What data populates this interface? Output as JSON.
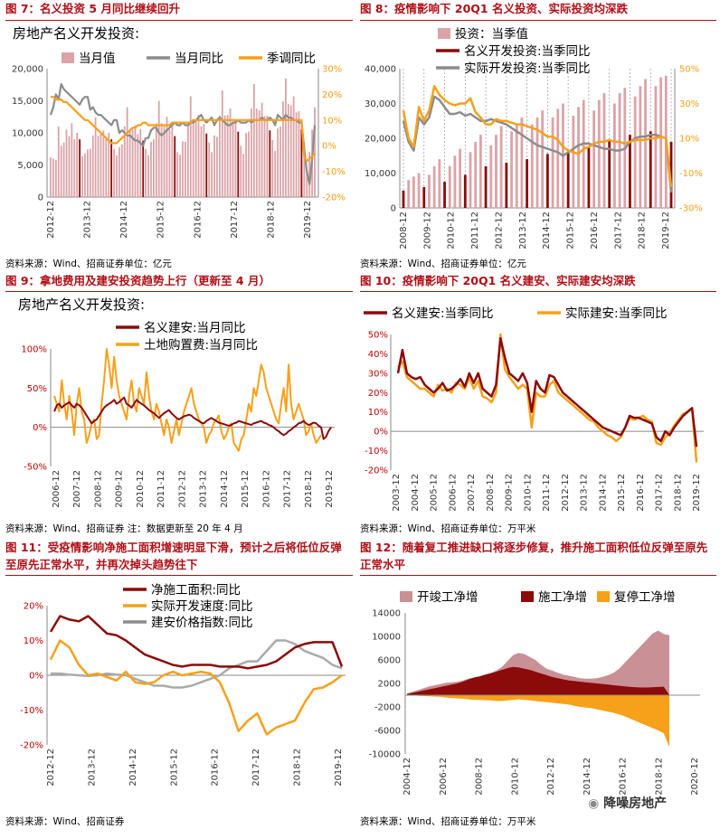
{
  "panels": {
    "p7": {
      "fig_title": "图 7：名义投资 5 月同比继续回升",
      "source": "资料来源：Wind、招商证券单位：亿元"
    },
    "p8": {
      "fig_title": "图 8：疫情影响下 20Q1 名义投资、实际投资均深跌",
      "source": "资料来源：Wind、招商证券单位：亿元"
    },
    "p9": {
      "fig_title": "图 9：拿地费用及建安投资趋势上行（更新至 4 月）",
      "source": "资料来源：Wind、招商证券 注：数据更新至 20 年 4 月"
    },
    "p10": {
      "fig_title": "图 10：疫情影响下 20Q1 名义建安、实际建安均深跌",
      "source": "资料来源：Wind、招商证券单位：万平米"
    },
    "p11": {
      "fig_title": "图 11：受疫情影响净施工面积增速明显下滑，预计之后将低位反弹至原先正常水平，并再次掉头趋势往下",
      "source": "资料来源：Wind、招商证券"
    },
    "p12": {
      "fig_title": "图 12：随着复工推进缺口将逐步修复，推升施工面积低位反弹至原先正常水平",
      "source": "资料来源：Wind、招商证券单位：万平米"
    }
  },
  "watermark": "降噪房地产",
  "chart_data": [
    {
      "id": "c7",
      "type": "bar+line",
      "title": "房地产名义开发投资:",
      "legend": [
        "当月值",
        "当月同比",
        "季调同比"
      ],
      "x_ticks": [
        "2012-12",
        "2013-12",
        "2014-12",
        "2015-12",
        "2016-12",
        "2017-12",
        "2018-12",
        "2019-12"
      ],
      "ylim_left": [
        0,
        20000
      ],
      "yticks_left": [
        "0",
        "5,000",
        "10,000",
        "15,000",
        "20,000"
      ],
      "ylim_right": [
        -20,
        30
      ],
      "yticks_right": [
        "-20%",
        "-10%",
        "0%",
        "10%",
        "20%",
        "30%"
      ],
      "bars_monthly": [
        6200,
        6000,
        5800,
        11000,
        8000,
        8500,
        10500,
        9500,
        11500,
        9000,
        10000,
        9000,
        6400,
        6800,
        7400,
        7500,
        9600,
        12400,
        9600,
        9800,
        10400,
        9000,
        10000,
        9000,
        7500,
        6500,
        7800,
        8200,
        11000,
        14000,
        10500,
        10500,
        11200,
        9800,
        10600,
        8800,
        7500,
        6500,
        8600,
        9000,
        11500,
        15000,
        11500,
        11000,
        12500,
        10500,
        11200,
        9500,
        7000,
        6600,
        8700,
        8600,
        11700,
        15700,
        12000,
        11900,
        12800,
        11000,
        11400,
        9900,
        8500,
        7000,
        9600,
        9400,
        12700,
        16600,
        12700,
        12800,
        13800,
        11800,
        12000,
        10200,
        8000,
        6700,
        10000,
        10200,
        13800,
        17600,
        13800,
        13500,
        14700,
        12600,
        12700,
        10400,
        8900,
        7200,
        10700,
        11000,
        14900,
        18500,
        14500,
        14300,
        15700,
        13200,
        13400,
        10600,
        8600,
        4000,
        7000,
        10500,
        14000
      ],
      "yoy_monthly": [
        12,
        15,
        20,
        18,
        24,
        22,
        21,
        20,
        19,
        18,
        17,
        16,
        18,
        19,
        19,
        14,
        15,
        13,
        12,
        12,
        11,
        10,
        9,
        8,
        10,
        10,
        5,
        6,
        5,
        4,
        4,
        3,
        2,
        2,
        1,
        0,
        3,
        3,
        6,
        7,
        7,
        5,
        4,
        5,
        6,
        7,
        8,
        9,
        8,
        8,
        9,
        8,
        8,
        9,
        9,
        10,
        11,
        12,
        10,
        9,
        10,
        11,
        8,
        10,
        11,
        10,
        9,
        8,
        8,
        9,
        9,
        10,
        9,
        9,
        9,
        10,
        9,
        10,
        10,
        10,
        11,
        10,
        10,
        11,
        10,
        8,
        12,
        11,
        10,
        12,
        11,
        11,
        10,
        10,
        9,
        9,
        -1,
        -10,
        -15,
        -5,
        8
      ],
      "sa_yoy_monthly": [
        19,
        19,
        18,
        18,
        18,
        17,
        17,
        16,
        15,
        14,
        13,
        12,
        11,
        10,
        10,
        9,
        8,
        7,
        6,
        5,
        4,
        3,
        2,
        1,
        1,
        1,
        2,
        3,
        4,
        5,
        6,
        7,
        7,
        8,
        8,
        9,
        9,
        8,
        8,
        8,
        8,
        8,
        8,
        8,
        8,
        8,
        9,
        9,
        9,
        9,
        9,
        9,
        9,
        9,
        10,
        10,
        10,
        10,
        10,
        10,
        10,
        10,
        10,
        10,
        10,
        10,
        10,
        10,
        10,
        10,
        10,
        10,
        10,
        10,
        10,
        10,
        10,
        10,
        10,
        10,
        10,
        10,
        10,
        10,
        10,
        10,
        10,
        10,
        10,
        10,
        10,
        10,
        10,
        10,
        10,
        10,
        -4,
        -6,
        -5,
        -4,
        -3
      ]
    },
    {
      "id": "c8",
      "type": "bar+line",
      "legend": [
        "投资：当季值",
        "名义开发投资:当季同比",
        "实际开发投资:当季同比"
      ],
      "x_ticks": [
        "2008-12",
        "2009-12",
        "2010-12",
        "2011-12",
        "2012-12",
        "2013-12",
        "2014-12",
        "2015-12",
        "2016-12",
        "2017-12",
        "2018-12",
        "2019-12"
      ],
      "ylim_left": [
        0,
        40000
      ],
      "yticks_left": [
        "0",
        "10,000",
        "20,000",
        "30,000",
        "40,000"
      ],
      "ylim_right": [
        -30,
        50
      ],
      "yticks_right": [
        "-30%",
        "-10%",
        "10%",
        "30%",
        "50%"
      ],
      "bars_quarterly": [
        5000,
        8000,
        9000,
        10000,
        6000,
        9500,
        12000,
        14000,
        7500,
        12000,
        15000,
        17000,
        9500,
        16000,
        19000,
        21000,
        12000,
        18000,
        21000,
        23500,
        13000,
        22000,
        24000,
        26000,
        14000,
        24000,
        26000,
        28000,
        15500,
        26000,
        28500,
        30000,
        16000,
        26500,
        29000,
        31000,
        17500,
        28000,
        31000,
        33000,
        19500,
        30000,
        33000,
        34500,
        21000,
        32000,
        35000,
        37000,
        22000,
        35000,
        37500,
        38000,
        19000
      ],
      "nominal_yoy_q": [
        26,
        10,
        5,
        28,
        20,
        26,
        40,
        35,
        32,
        30,
        29,
        30,
        30,
        33,
        25,
        22,
        18,
        18,
        21,
        20,
        20,
        19,
        18,
        18,
        17,
        16,
        15,
        13,
        11,
        11,
        9,
        5,
        3,
        2,
        1,
        4,
        5,
        7,
        8,
        8,
        9,
        8,
        8,
        7,
        8,
        9,
        9,
        9,
        10,
        10,
        11,
        10,
        -18
      ],
      "real_yoy_q": [
        20,
        8,
        3,
        22,
        18,
        22,
        34,
        32,
        28,
        24,
        24,
        25,
        23,
        24,
        22,
        20,
        20,
        21,
        20,
        19,
        18,
        16,
        14,
        12,
        10,
        8,
        6,
        5,
        4,
        3,
        2,
        0,
        2,
        4,
        6,
        7,
        7,
        6,
        5,
        4,
        4,
        3,
        3,
        4,
        8,
        10,
        11,
        11,
        12,
        12,
        11,
        10,
        -21
      ]
    },
    {
      "id": "c9",
      "type": "line",
      "title": "房地产名义开发投资:",
      "legend": [
        "名义建安:当月同比",
        "土地购置费:当月同比"
      ],
      "x_ticks": [
        "2006-12",
        "2007-12",
        "2008-12",
        "2009-12",
        "2010-12",
        "2011-12",
        "2012-12",
        "2013-12",
        "2014-12",
        "2015-12",
        "2016-12",
        "2017-12",
        "2018-12",
        "2019-12"
      ],
      "ylim": [
        -50,
        100
      ],
      "yticks": [
        "-50%",
        "0%",
        "50%",
        "100%"
      ],
      "construction_yoy": [
        20,
        28,
        30,
        25,
        28,
        30,
        32,
        28,
        25,
        30,
        28,
        25,
        20,
        15,
        10,
        5,
        8,
        10,
        15,
        20,
        25,
        28,
        30,
        32,
        35,
        30,
        32,
        35,
        38,
        30,
        28,
        25,
        30,
        35,
        32,
        30,
        28,
        25,
        22,
        20,
        18,
        15,
        12,
        15,
        18,
        20,
        22,
        18,
        15,
        12,
        10,
        12,
        14,
        15,
        16,
        15,
        12,
        10,
        8,
        6,
        5,
        8,
        10,
        12,
        10,
        8,
        6,
        5,
        4,
        3,
        2,
        3,
        5,
        6,
        8,
        7,
        6,
        5,
        4,
        3,
        5,
        6,
        7,
        8,
        6,
        5,
        3,
        2,
        0,
        -3,
        -5,
        -8,
        -10,
        -8,
        -5,
        -3,
        0,
        2,
        5,
        6,
        8,
        5,
        3,
        4,
        6,
        5,
        2,
        0,
        -15,
        -12,
        -5,
        0
      ],
      "land_yoy": [
        40,
        30,
        20,
        60,
        30,
        10,
        40,
        20,
        -10,
        30,
        50,
        20,
        10,
        -20,
        -10,
        5,
        10,
        -15,
        -10,
        30,
        60,
        100,
        80,
        50,
        90,
        60,
        40,
        30,
        20,
        10,
        40,
        60,
        30,
        20,
        50,
        40,
        30,
        70,
        40,
        20,
        10,
        30,
        20,
        5,
        -10,
        10,
        0,
        -20,
        -5,
        10,
        -10,
        5,
        20,
        30,
        40,
        50,
        30,
        20,
        10,
        5,
        0,
        -20,
        -10,
        -5,
        5,
        10,
        15,
        -5,
        -15,
        -10,
        0,
        5,
        -20,
        -25,
        -30,
        -15,
        -10,
        10,
        30,
        20,
        50,
        40,
        60,
        80,
        70,
        50,
        40,
        30,
        20,
        10,
        5,
        30,
        50,
        20,
        80,
        30,
        10,
        20,
        30,
        20,
        10,
        -10,
        -5,
        5,
        -10,
        -20,
        -15,
        -10
      ]
    },
    {
      "id": "c10",
      "type": "line",
      "legend": [
        "名义建安:当季同比",
        "实际建安:当季同比"
      ],
      "x_ticks": [
        "2003-12",
        "2004-12",
        "2005-12",
        "2006-12",
        "2007-12",
        "2008-12",
        "2009-12",
        "2010-12",
        "2011-12",
        "2012-12",
        "2013-12",
        "2014-12",
        "2015-12",
        "2016-12",
        "2017-12",
        "2018-12",
        "2019-12"
      ],
      "ylim": [
        -20,
        50
      ],
      "yticks": [
        "-20%",
        "-10%",
        "0%",
        "10%",
        "20%",
        "30%",
        "40%",
        "50%"
      ],
      "nominal_q": [
        30,
        42,
        30,
        28,
        27,
        28,
        24,
        22,
        20,
        22,
        25,
        21,
        22,
        24,
        27,
        23,
        30,
        25,
        30,
        22,
        20,
        18,
        24,
        48,
        38,
        30,
        28,
        26,
        30,
        25,
        10,
        26,
        22,
        20,
        29,
        28,
        24,
        20,
        18,
        16,
        14,
        12,
        10,
        8,
        6,
        4,
        2,
        1,
        0,
        -1,
        -2,
        2,
        8,
        7,
        7,
        6,
        5,
        4,
        -3,
        -5,
        0,
        -2,
        2,
        5,
        8,
        10,
        12,
        -8
      ],
      "real_q": [
        33,
        36,
        28,
        26,
        24,
        22,
        22,
        20,
        18,
        24,
        21,
        22,
        20,
        25,
        24,
        22,
        28,
        22,
        26,
        18,
        17,
        15,
        20,
        50,
        32,
        28,
        25,
        22,
        24,
        22,
        2,
        20,
        18,
        18,
        24,
        26,
        20,
        18,
        16,
        14,
        12,
        10,
        8,
        6,
        5,
        2,
        0,
        -2,
        -3,
        -5,
        -3,
        2,
        7,
        6,
        7,
        8,
        6,
        5,
        -6,
        -7,
        -3,
        -1,
        3,
        6,
        9,
        10,
        12,
        -16
      ]
    },
    {
      "id": "c11",
      "type": "line",
      "legend": [
        "净施工面积:同比",
        "实际开发速度:同比",
        "建安价格指数:同比"
      ],
      "x_ticks": [
        "2012-12",
        "2013-12",
        "2014-12",
        "2015-12",
        "2016-12",
        "2017-12",
        "2018-12",
        "2019-12"
      ],
      "ylim": [
        -20,
        20
      ],
      "yticks": [
        "-20%",
        "-10%",
        "0%",
        "10%",
        "20%"
      ],
      "net_construction_yoy": [
        12.5,
        17,
        16,
        15.5,
        17,
        14.5,
        12,
        11.5,
        10,
        8,
        6,
        5,
        4,
        3,
        2.5,
        3,
        3,
        3,
        2.5,
        2.5,
        2.5,
        2,
        2.5,
        3,
        4,
        6,
        8,
        9,
        9.5,
        9.5,
        9.5,
        2.5
      ],
      "dev_speed_yoy": [
        4.5,
        10,
        8,
        3,
        0,
        0.5,
        -0.5,
        -1.5,
        1,
        -2,
        -2.5,
        -2,
        0,
        1,
        0,
        0.5,
        1,
        0.5,
        -2,
        -8,
        -16,
        -13,
        -11,
        -17,
        -15,
        -14,
        -13,
        -8,
        -4,
        -3.5,
        -2,
        0
      ],
      "price_index_yoy": [
        0.5,
        0.5,
        0.2,
        0,
        -0.2,
        0,
        0.5,
        0.2,
        0,
        -1,
        -2,
        -3,
        -3,
        -3.5,
        -3.5,
        -3,
        -2,
        -1,
        0,
        2,
        3,
        4,
        4,
        7,
        10,
        10,
        9,
        7,
        6,
        5,
        3,
        2
      ]
    },
    {
      "id": "c12",
      "type": "area",
      "legend": [
        "开竣工净增",
        "施工净增",
        "复停工净增"
      ],
      "x_ticks": [
        "2004-12",
        "2006-12",
        "2008-12",
        "2010-12",
        "2012-12",
        "2014-12",
        "2016-12",
        "2018-12",
        "2020-12"
      ],
      "ylim": [
        -10000,
        14000
      ],
      "yticks": [
        "-10000",
        "-6000",
        "-2000",
        "2000",
        "6000",
        "10000",
        "14000"
      ],
      "start_completion_net": [
        300,
        600,
        900,
        1200,
        1500,
        1700,
        1900,
        2100,
        2200,
        2300,
        2500,
        2800,
        3000,
        3200,
        3500,
        3800,
        4200,
        4800,
        5800,
        6800,
        7200,
        7000,
        6500,
        6000,
        5200,
        4500,
        4200,
        3800,
        3500,
        3300,
        3100,
        2900,
        2800,
        2800,
        2900,
        3100,
        3400,
        3800,
        4500,
        5500,
        6500,
        7500,
        8500,
        9500,
        10500,
        11000,
        10400,
        10200
      ],
      "construction_net": [
        200,
        400,
        600,
        800,
        1000,
        1200,
        1400,
        1600,
        1800,
        2000,
        2300,
        2700,
        3000,
        3200,
        3500,
        3700,
        4000,
        4300,
        4600,
        4800,
        4700,
        4500,
        4300,
        4000,
        3700,
        3400,
        3100,
        2900,
        2700,
        2500,
        2400,
        2300,
        2200,
        2100,
        2000,
        1900,
        1800,
        1700,
        1600,
        1500,
        1400,
        1350,
        1300,
        1300,
        1350,
        1400,
        1450,
        0
      ],
      "restart_net": [
        0,
        0,
        -100,
        -150,
        -200,
        -250,
        -300,
        -400,
        -500,
        -550,
        -600,
        -700,
        -800,
        -800,
        -850,
        -900,
        -1000,
        -1000,
        -900,
        -800,
        -700,
        -800,
        -900,
        -1000,
        -1100,
        -1200,
        -1300,
        -1400,
        -1500,
        -1600,
        -1800,
        -2000,
        -2100,
        -2200,
        -2400,
        -2600,
        -2800,
        -3000,
        -3300,
        -3600,
        -4000,
        -4400,
        -4800,
        -5200,
        -5600,
        -6000,
        -6500,
        -8800
      ]
    }
  ]
}
